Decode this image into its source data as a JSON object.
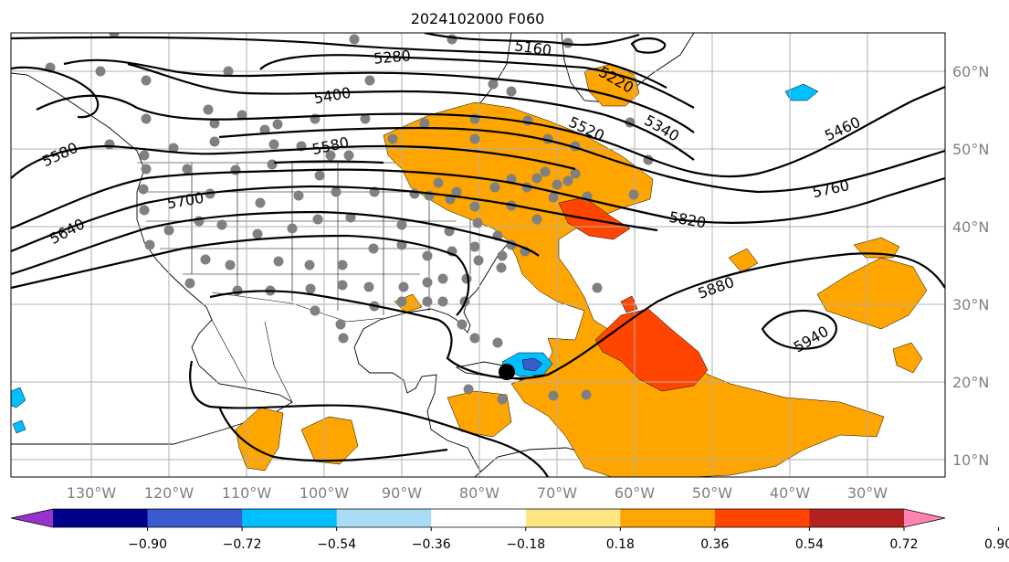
{
  "title": "2024102000 F060",
  "colors": {
    "light_orange": "#ffa500",
    "orange_red": "#ff4500",
    "sky_blue": "#00bfff",
    "navy": "#00008b",
    "royal_blue": "#3a5bd0",
    "light_blue": "#aadcf5",
    "station": "#808080",
    "storm_center": "#000000"
  },
  "map": {
    "lon_labels": [
      "130°W",
      "120°W",
      "110°W",
      "100°W",
      "90°W",
      "80°W",
      "70°W",
      "60°W",
      "50°W",
      "40°W",
      "30°W"
    ],
    "lat_labels": [
      "60°N",
      "50°N",
      "40°N",
      "30°N",
      "20°N",
      "10°N"
    ],
    "contour_labels": [
      "5160",
      "5220",
      "5280",
      "5340",
      "5400",
      "5460",
      "5520",
      "5580",
      "5580",
      "5640",
      "5700",
      "5760",
      "5820",
      "5880",
      "5940"
    ],
    "storm_center_icon": "storm-center-dot",
    "station_icon": "station-dot"
  },
  "colorbar": {
    "colors": [
      "#9932cc",
      "#00008b",
      "#3a5bd0",
      "#00bfff",
      "#aadcf5",
      "#ffffff",
      "#ffe680",
      "#ffa500",
      "#ff4500",
      "#b22222",
      "#ff85b0"
    ],
    "ticks": [
      "−0.90",
      "−0.72",
      "−0.54",
      "−0.36",
      "−0.18",
      "0.18",
      "0.36",
      "0.54",
      "0.72",
      "0.90"
    ]
  }
}
